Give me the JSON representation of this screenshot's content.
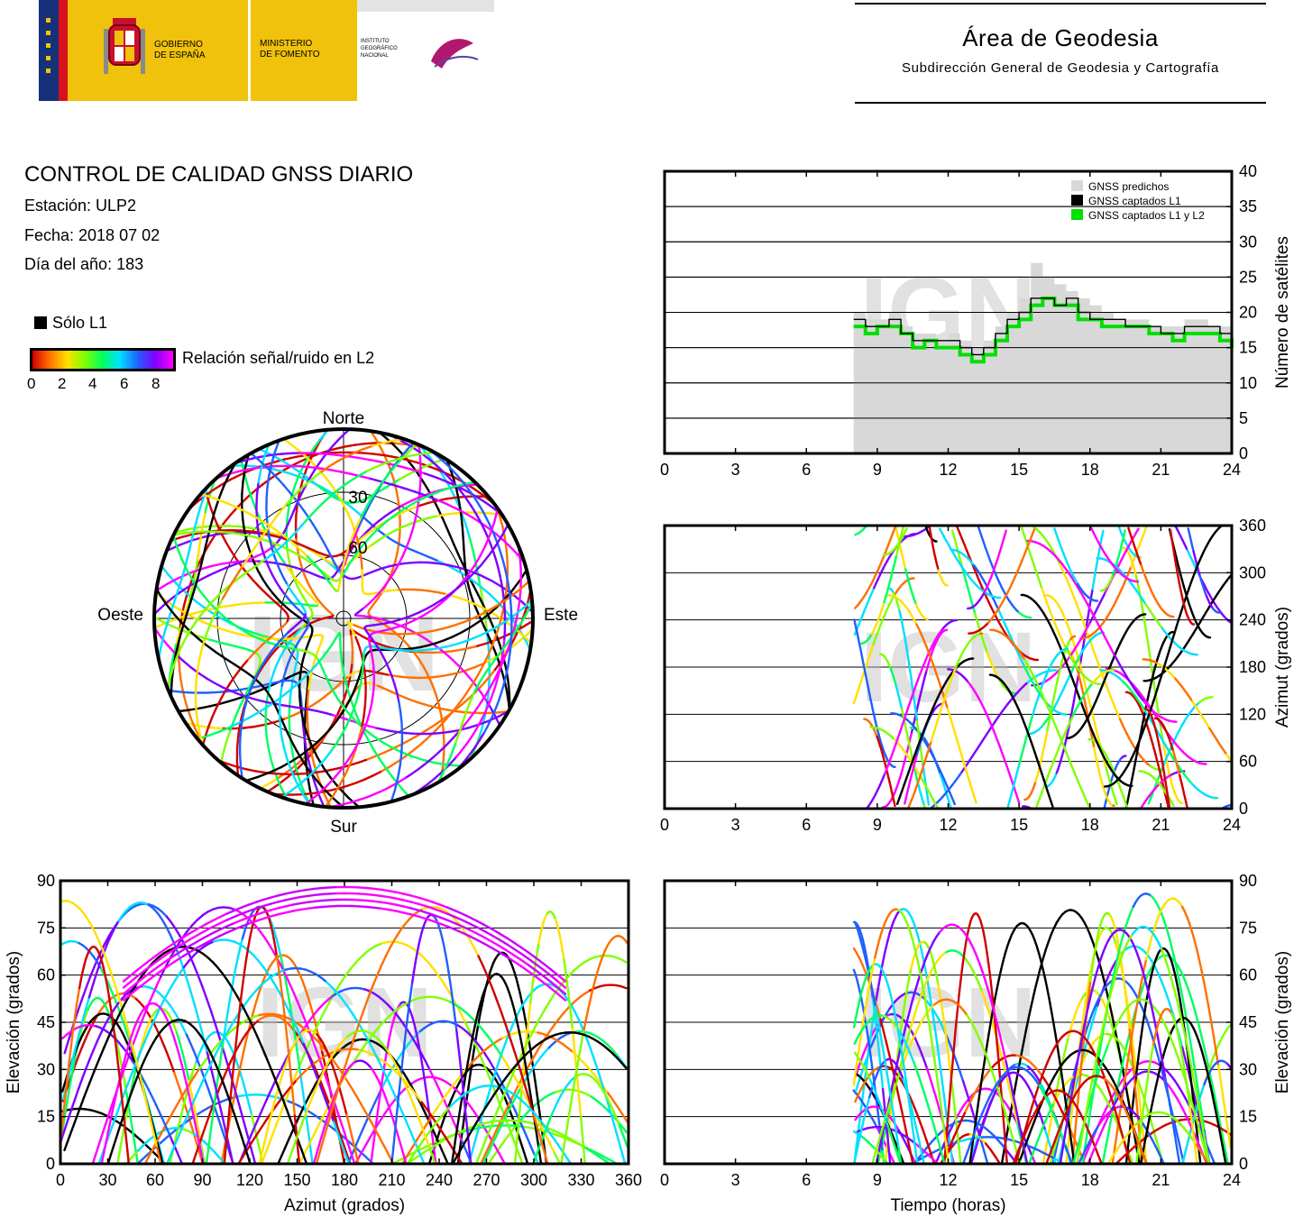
{
  "header": {
    "gov_lines": [
      "GOBIERNO",
      "DE ESPAÑA"
    ],
    "ministry_lines": [
      "MINISTERIO",
      "DE FOMENTO"
    ],
    "institute_lines": [
      "INSTITUTO",
      "GEOGRÁFICO",
      "NACIONAL"
    ],
    "area_title": "Área de Geodesia",
    "area_subtitle": "Subdirección General de Geodesia y Cartografía"
  },
  "info": {
    "title": "CONTROL DE CALIDAD GNSS DIARIO",
    "station": "Estación: ULP2",
    "date": "Fecha: 2018 07 02",
    "doy": "Día del año: 183"
  },
  "legend": {
    "l1_only": "Sólo L1",
    "snr_label": "Relación señal/ruido en L2",
    "snr_ticks": [
      "0",
      "2",
      "4",
      "6",
      "8"
    ]
  },
  "colors": {
    "snr_scale": [
      "#d00000",
      "#ff7000",
      "#ffe000",
      "#80ff00",
      "#00ff60",
      "#00e0ff",
      "#2060ff",
      "#8000ff",
      "#ff00ff"
    ],
    "predicted": "#d8d8d8",
    "l1": "#000000",
    "l1l2": "#00e000"
  },
  "watermark": "IGN",
  "chart_data": [
    {
      "id": "satellites",
      "type": "area",
      "xlabel": "",
      "ylabel": "Número de satélites",
      "xlim": [
        0,
        24
      ],
      "ylim": [
        0,
        40
      ],
      "xticks": [
        0,
        3,
        6,
        9,
        12,
        15,
        18,
        21,
        24
      ],
      "yticks": [
        0,
        5,
        10,
        15,
        20,
        25,
        30,
        35,
        40
      ],
      "legend_position": "top-right",
      "x": [
        8,
        8.5,
        9,
        9.5,
        10,
        10.5,
        11,
        11.5,
        12,
        12.5,
        13,
        13.5,
        14,
        14.5,
        15,
        15.5,
        16,
        16.5,
        17,
        17.5,
        18,
        18.5,
        19,
        19.5,
        20,
        20.5,
        21,
        21.5,
        22,
        22.5,
        23,
        23.5,
        24
      ],
      "series": [
        {
          "name": "GNSS predichos",
          "values": [
            20,
            19,
            19,
            20,
            18,
            17,
            17,
            16,
            17,
            16,
            15,
            16,
            18,
            20,
            22,
            27,
            25,
            24,
            23,
            22,
            21,
            20,
            19,
            19,
            19,
            18,
            18,
            18,
            19,
            19,
            18,
            18,
            18
          ]
        },
        {
          "name": "GNSS captados L1",
          "values": [
            19,
            18,
            18,
            19,
            17,
            16,
            16,
            16,
            16,
            15,
            14,
            15,
            17,
            19,
            20,
            22,
            22,
            21,
            22,
            20,
            19,
            19,
            19,
            18,
            18,
            18,
            17,
            17,
            18,
            18,
            18,
            17,
            16
          ]
        },
        {
          "name": "GNSS captados L1 y L2",
          "values": [
            18,
            17,
            18,
            18,
            17,
            15,
            16,
            15,
            15,
            14,
            13,
            14,
            16,
            18,
            19,
            21,
            22,
            21,
            21,
            19,
            19,
            18,
            18,
            18,
            18,
            17,
            17,
            16,
            17,
            17,
            17,
            16,
            15
          ]
        }
      ]
    },
    {
      "id": "azimuth_time",
      "type": "scatter",
      "xlabel": "",
      "ylabel": "Azimut (grados)",
      "xlim": [
        0,
        24
      ],
      "ylim": [
        0,
        360
      ],
      "xticks": [
        0,
        3,
        6,
        9,
        12,
        15,
        18,
        21,
        24
      ],
      "yticks": [
        0,
        60,
        120,
        180,
        240,
        300,
        360
      ]
    },
    {
      "id": "elevation_azimuth",
      "type": "scatter",
      "xlabel": "Azimut (grados)",
      "ylabel": "Elevación (grados)",
      "xlim": [
        0,
        360
      ],
      "ylim": [
        0,
        90
      ],
      "xticks": [
        0,
        30,
        60,
        90,
        120,
        150,
        180,
        210,
        240,
        270,
        300,
        330,
        360
      ],
      "yticks": [
        0,
        15,
        30,
        45,
        60,
        75,
        90
      ]
    },
    {
      "id": "elevation_time",
      "type": "scatter",
      "xlabel": "Tiempo (horas)",
      "ylabel": "Elevación (grados)",
      "xlim": [
        0,
        24
      ],
      "ylim": [
        0,
        90
      ],
      "xticks": [
        0,
        3,
        6,
        9,
        12,
        15,
        18,
        21,
        24
      ],
      "yticks": [
        0,
        15,
        30,
        45,
        60,
        75,
        90
      ]
    },
    {
      "id": "skyplot",
      "type": "scatter",
      "directions": {
        "north": "Norte",
        "south": "Sur",
        "east": "Este",
        "west": "Oeste"
      },
      "ring_labels": [
        "30",
        "60"
      ]
    }
  ]
}
